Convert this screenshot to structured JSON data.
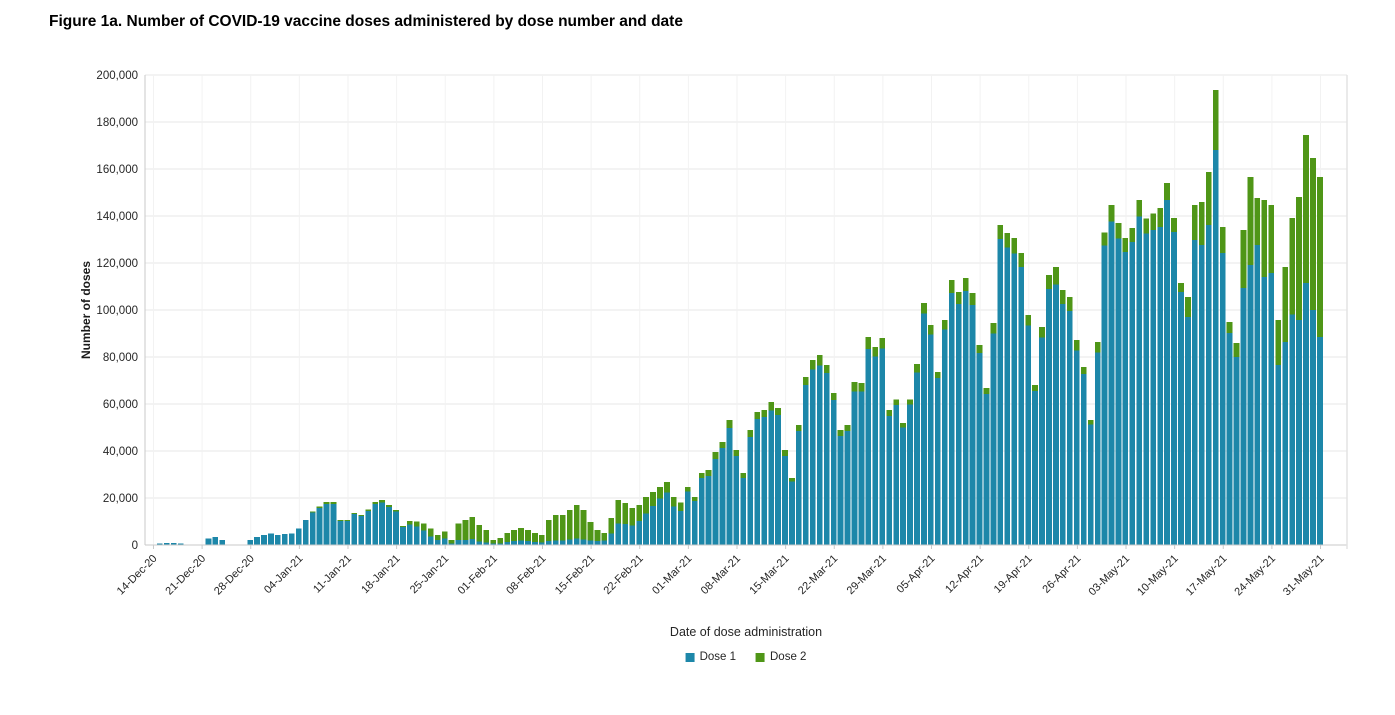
{
  "figure": {
    "title": "Figure 1a. Number of COVID-19 vaccine doses administered by dose number and date"
  },
  "chart_data": {
    "type": "bar",
    "stacked": true,
    "title": "Figure 1a. Number of COVID-19 vaccine doses administered by dose number and date",
    "xlabel": "Date of dose administration",
    "ylabel": "Number of doses",
    "ylim": [
      0,
      200000
    ],
    "y_tick_step": 20000,
    "y_tick_labels": [
      "0",
      "20,000",
      "40,000",
      "60,000",
      "80,000",
      "100,000",
      "120,000",
      "140,000",
      "160,000",
      "180,000",
      "200,000"
    ],
    "start_date": "14-Dec-20",
    "x_tick_every_days": 7,
    "x_tick_labels": [
      "14-Dec-20",
      "21-Dec-20",
      "28-Dec-20",
      "04-Jan-21",
      "11-Jan-21",
      "18-Jan-21",
      "25-Jan-21",
      "01-Feb-21",
      "08-Feb-21",
      "15-Feb-21",
      "22-Feb-21",
      "01-Mar-21",
      "08-Mar-21",
      "15-Mar-21",
      "22-Mar-21",
      "29-Mar-21",
      "05-Apr-21",
      "12-Apr-21",
      "19-Apr-21",
      "26-Apr-21",
      "03-May-21",
      "10-May-21",
      "17-May-21",
      "24-May-21",
      "31-May-21"
    ],
    "legend_position": "bottom-center",
    "grid": true,
    "series": [
      {
        "name": "Dose 1",
        "color": "#1d87a9",
        "values": [
          200,
          700,
          800,
          900,
          700,
          0,
          0,
          0,
          2800,
          3500,
          2100,
          0,
          0,
          0,
          2100,
          3500,
          4300,
          5000,
          4200,
          4700,
          5000,
          7100,
          10600,
          13900,
          15800,
          17400,
          17500,
          10200,
          10200,
          13200,
          12300,
          14500,
          17500,
          18100,
          16100,
          14300,
          7600,
          8800,
          7900,
          6200,
          3600,
          2100,
          2700,
          700,
          2200,
          2100,
          2500,
          1500,
          1000,
          600,
          700,
          1300,
          1800,
          2000,
          1600,
          1200,
          1100,
          1800,
          2000,
          2000,
          2400,
          2700,
          2300,
          2000,
          1800,
          2000,
          5000,
          9100,
          9000,
          8200,
          10200,
          13300,
          16600,
          19700,
          22300,
          16400,
          14500,
          22700,
          18700,
          28600,
          29400,
          36600,
          41300,
          49700,
          37900,
          28600,
          45900,
          53600,
          54400,
          57300,
          55300,
          37900,
          27000,
          48500,
          68000,
          74700,
          76300,
          73100,
          61700,
          46400,
          48500,
          65400,
          65400,
          83500,
          80300,
          83600,
          54900,
          59500,
          50000,
          59800,
          73500,
          98500,
          89600,
          71100,
          91700,
          107300,
          102600,
          108100,
          102200,
          81600,
          64300,
          90000,
          130200,
          126700,
          124100,
          118200,
          93400,
          65600,
          88300,
          108900,
          110800,
          102500,
          99500,
          82700,
          72700,
          51200,
          81900,
          127500,
          137700,
          130500,
          124600,
          129000,
          139800,
          132500,
          134000,
          135300,
          146800,
          133200,
          107700,
          97000,
          129800,
          127700,
          136200,
          168100,
          124200,
          90200,
          80000,
          109300,
          119100,
          127700,
          114000,
          115700,
          76600,
          86400,
          98100,
          95700,
          111400,
          100000,
          88500
        ]
      },
      {
        "name": "Dose 2",
        "color": "#4f9617",
        "values": [
          0,
          0,
          0,
          0,
          0,
          0,
          0,
          0,
          0,
          0,
          0,
          0,
          0,
          0,
          0,
          0,
          0,
          0,
          0,
          0,
          0,
          0,
          0,
          300,
          500,
          800,
          900,
          400,
          400,
          500,
          500,
          700,
          900,
          1000,
          900,
          600,
          400,
          1500,
          2000,
          3000,
          3500,
          2200,
          3000,
          1400,
          7000,
          8500,
          9500,
          7000,
          5400,
          1500,
          2300,
          3800,
          4600,
          5200,
          4800,
          3900,
          3200,
          8800,
          10800,
          10800,
          12500,
          14300,
          12600,
          7800,
          4600,
          3100,
          6500,
          10000,
          8900,
          7500,
          6800,
          7100,
          6000,
          5000,
          4500,
          4000,
          3500,
          2000,
          1700,
          2000,
          2500,
          3000,
          2500,
          3500,
          2500,
          2000,
          3000,
          3000,
          3000,
          3500,
          3000,
          2500,
          1500,
          2500,
          3500,
          4000,
          4500,
          3500,
          3000,
          2500,
          2500,
          4000,
          3500,
          5000,
          4000,
          4500,
          2500,
          2500,
          2000,
          2200,
          3500,
          4500,
          4000,
          2500,
          4000,
          5500,
          5000,
          5500,
          5000,
          3500,
          2500,
          4500,
          6000,
          6000,
          6500,
          6000,
          4500,
          2500,
          4500,
          6000,
          7500,
          6000,
          6000,
          4500,
          3000,
          2000,
          4500,
          5500,
          7000,
          6500,
          6000,
          6000,
          7000,
          6500,
          7000,
          8100,
          7200,
          5900,
          3700,
          8600,
          14900,
          18300,
          22500,
          25500,
          11100,
          4700,
          6000,
          24700,
          37500,
          19900,
          32800,
          29000,
          19100,
          31900,
          41000,
          52400,
          63000,
          64700,
          68100
        ]
      }
    ]
  },
  "style": {
    "h_grid_color": "#e7e7e7",
    "v_grid_color": "#f2f2f2",
    "axis_color": "#c9c9c9",
    "tick_label_color": "#262626"
  }
}
